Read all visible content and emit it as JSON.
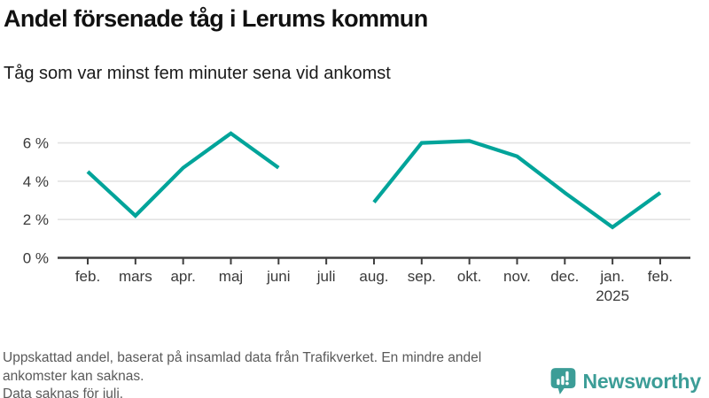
{
  "header": {
    "title": "Andel försenade tåg i Lerums kommun",
    "subtitle": "Tåg som var minst fem minuter sena vid ankomst"
  },
  "chart_data": {
    "type": "line",
    "title": "Andel försenade tåg i Lerums kommun",
    "subtitle": "Tåg som var minst fem minuter sena vid ankomst",
    "categories": [
      "feb.",
      "mars",
      "apr.",
      "maj",
      "juni",
      "juli",
      "aug.",
      "sep.",
      "okt.",
      "nov.",
      "dec.",
      "jan.",
      "feb."
    ],
    "values": [
      4.5,
      2.2,
      4.7,
      6.5,
      4.7,
      null,
      2.9,
      6.0,
      6.1,
      5.3,
      3.4,
      1.6,
      3.4
    ],
    "unit": "%",
    "year_label": "2025",
    "year_label_under_category_index": 11,
    "y_ticks": [
      0,
      2,
      4,
      6
    ],
    "y_tick_labels": [
      "0 %",
      "2 %",
      "4 %",
      "6 %"
    ],
    "ylim": [
      0,
      7.3
    ],
    "grid": true,
    "legend": false,
    "missing_data_months": [
      "juli"
    ],
    "colors": {
      "line": "#00a49a",
      "gridline": "#e3e3e3",
      "axis": "#3f3f3f",
      "tick_text": "#3a3a3a"
    }
  },
  "footer": {
    "lines": [
      "Uppskattad andel, baserat på insamlad data från Trafikverket. En mindre andel",
      "ankomster kan saknas.",
      "Data saknas för juli."
    ]
  },
  "logo": {
    "name": "Newsworthy",
    "icon": "bar-chart-speech-bubble-icon",
    "color": "#3c9d97"
  }
}
